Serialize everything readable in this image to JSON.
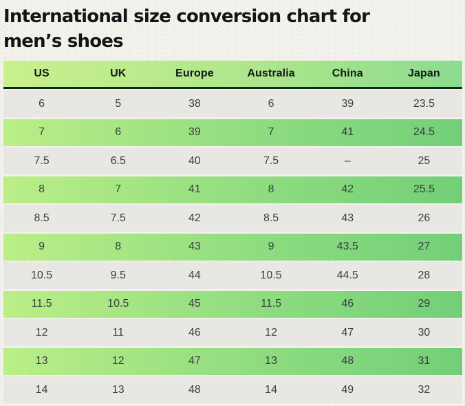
{
  "title_lines": [
    "International size conversion chart for",
    "men’s shoes"
  ],
  "colors": {
    "page_background": "#f2f1eb",
    "header_gradient_start": "#c9f08d",
    "header_gradient_end": "#8cdb8f",
    "header_underline": "#0f2917",
    "green_row_gradient_start": "#bbee87",
    "green_row_gradient_end": "#72cf78",
    "gray_row": "#e8e7e4",
    "title_text": "#121416",
    "cell_text": "#3a3d3f"
  },
  "chart_data": {
    "type": "table",
    "title": "International size conversion chart for men’s shoes",
    "columns": [
      "US",
      "UK",
      "Europe",
      "Australia",
      "China",
      "Japan"
    ],
    "rows": [
      [
        "6",
        "5",
        "38",
        "6",
        "39",
        "23.5"
      ],
      [
        "7",
        "6",
        "39",
        "7",
        "41",
        "24.5"
      ],
      [
        "7.5",
        "6.5",
        "40",
        "7.5",
        "–",
        "25"
      ],
      [
        "8",
        "7",
        "41",
        "8",
        "42",
        "25.5"
      ],
      [
        "8.5",
        "7.5",
        "42",
        "8.5",
        "43",
        "26"
      ],
      [
        "9",
        "8",
        "43",
        "9",
        "43.5",
        "27"
      ],
      [
        "10.5",
        "9.5",
        "44",
        "10.5",
        "44.5",
        "28"
      ],
      [
        "11.5",
        "10.5",
        "45",
        "11.5",
        "46",
        "29"
      ],
      [
        "12",
        "11",
        "46",
        "12",
        "47",
        "30"
      ],
      [
        "13",
        "12",
        "47",
        "13",
        "48",
        "31"
      ],
      [
        "14",
        "13",
        "48",
        "14",
        "49",
        "32"
      ]
    ],
    "row_striping": "odd rows green gradient, even rows light gray, starting gray"
  }
}
